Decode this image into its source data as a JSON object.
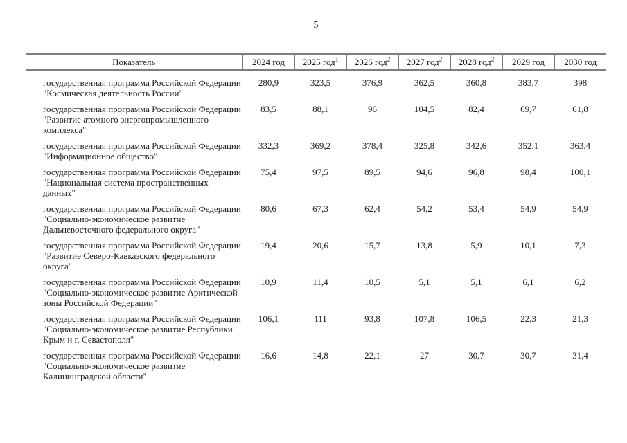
{
  "page": {
    "number": "5"
  },
  "table": {
    "columns": [
      {
        "label": "Показатель",
        "sup": ""
      },
      {
        "label": "2024 год",
        "sup": ""
      },
      {
        "label": "2025 год",
        "sup": "1"
      },
      {
        "label": "2026 год",
        "sup": "2"
      },
      {
        "label": "2027 год",
        "sup": "2"
      },
      {
        "label": "2028 год",
        "sup": "2"
      },
      {
        "label": "2029 год",
        "sup": ""
      },
      {
        "label": "2030 год",
        "sup": ""
      }
    ],
    "rows": [
      {
        "name": "государственная программа Российской Федерации \"Космическая деятельность России\"",
        "values": [
          "280,9",
          "323,5",
          "376,9",
          "362,5",
          "360,8",
          "383,7",
          "398"
        ]
      },
      {
        "name": "государственная программа Российской Федерации \"Развитие атомного энергопромышленного комплекса\"",
        "values": [
          "83,5",
          "88,1",
          "96",
          "104,5",
          "82,4",
          "69,7",
          "61,8"
        ]
      },
      {
        "name": "государственная программа Российской Федерации \"Информационное общество\"",
        "values": [
          "332,3",
          "369,2",
          "378,4",
          "325,8",
          "342,6",
          "352,1",
          "363,4"
        ]
      },
      {
        "name": "государственная программа Российской Федерации \"Национальная система пространственных данных\"",
        "values": [
          "75,4",
          "97,5",
          "89,5",
          "94,6",
          "96,8",
          "98,4",
          "100,1"
        ]
      },
      {
        "name": "государственная программа Российской Федерации \"Социально-экономическое развитие Дальневосточного федерального округа\"",
        "values": [
          "80,6",
          "67,3",
          "62,4",
          "54,2",
          "53,4",
          "54,9",
          "54,9"
        ]
      },
      {
        "name": "государственная программа Российской Федерации \"Развитие Северо-Кавказского федерального округа\"",
        "values": [
          "19,4",
          "20,6",
          "15,7",
          "13,8",
          "5,9",
          "10,1",
          "7,3"
        ]
      },
      {
        "name": "государственная программа Российской Федерации \"Социально-экономическое развитие Арктической зоны Российской Федерации\"",
        "values": [
          "10,9",
          "11,4",
          "10,5",
          "5,1",
          "5,1",
          "6,1",
          "6,2"
        ]
      },
      {
        "name": "государственная программа Российской Федерации \"Социально-экономическое развитие Республики Крым и г. Севастополя\"",
        "values": [
          "106,1",
          "111",
          "93,8",
          "107,8",
          "106,5",
          "22,3",
          "21,3"
        ]
      },
      {
        "name": "государственная программа Российской Федерации \"Социально-экономическое развитие Калининградской области\"",
        "values": [
          "16,6",
          "14,8",
          "22,1",
          "27",
          "30,7",
          "30,7",
          "31,4"
        ]
      }
    ]
  }
}
